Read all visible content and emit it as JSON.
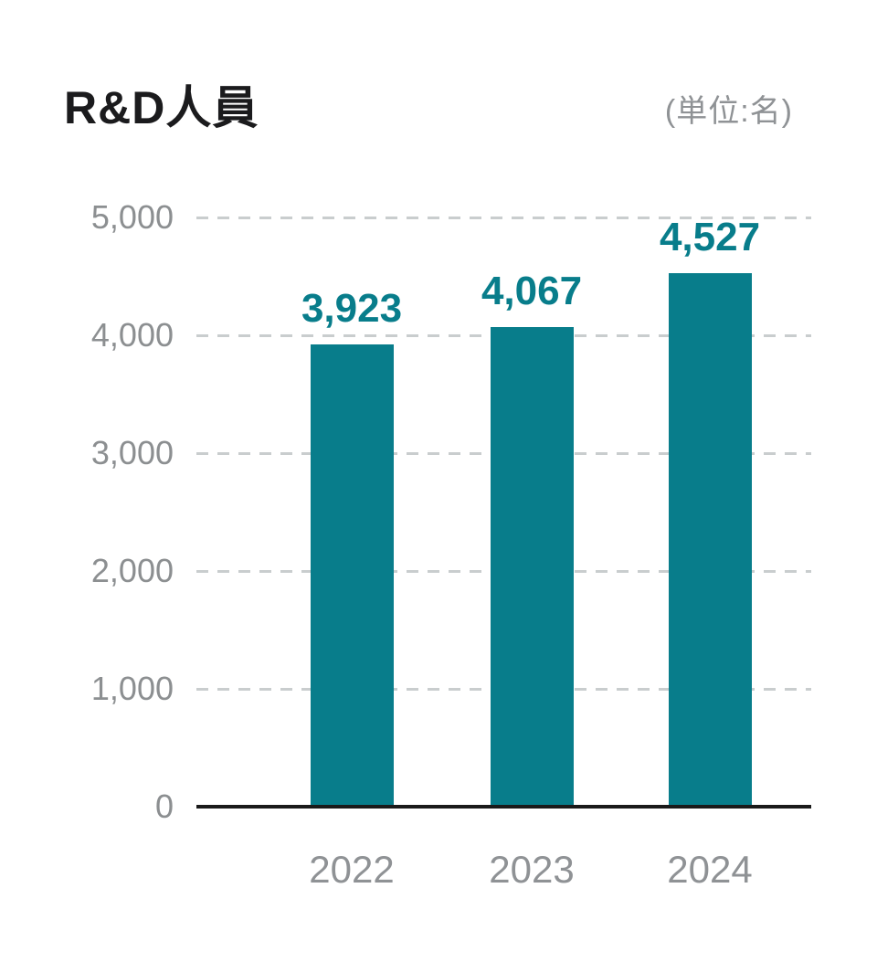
{
  "header": {
    "title": "R&D人員",
    "unit_label": "(単位:名)"
  },
  "chart_data": {
    "type": "bar",
    "title": "R&D人員",
    "subtitle": "(単位:名)",
    "unit": "名",
    "categories": [
      "2022",
      "2023",
      "2024"
    ],
    "values": [
      3923,
      4067,
      4527
    ],
    "value_labels": [
      "3,923",
      "4,067",
      "4,527"
    ],
    "xlabel": "",
    "ylabel": "",
    "ylim": [
      0,
      5000
    ],
    "y_tick_interval": 1000,
    "y_tick_labels": [
      "5,000",
      "4,000",
      "3,000",
      "2,000",
      "1,000",
      "0"
    ],
    "grid": "horizontal-dashed",
    "legend_position": "none",
    "colors": {
      "bar": "#087d8b",
      "value_label": "#087d8b",
      "title": "#1b1b1d",
      "axis_labels": "#8c8f91",
      "unit_label": "#8f9295",
      "gridline": "#c9cdce",
      "baseline": "#1a1a1a",
      "background": "#ffffff"
    }
  }
}
